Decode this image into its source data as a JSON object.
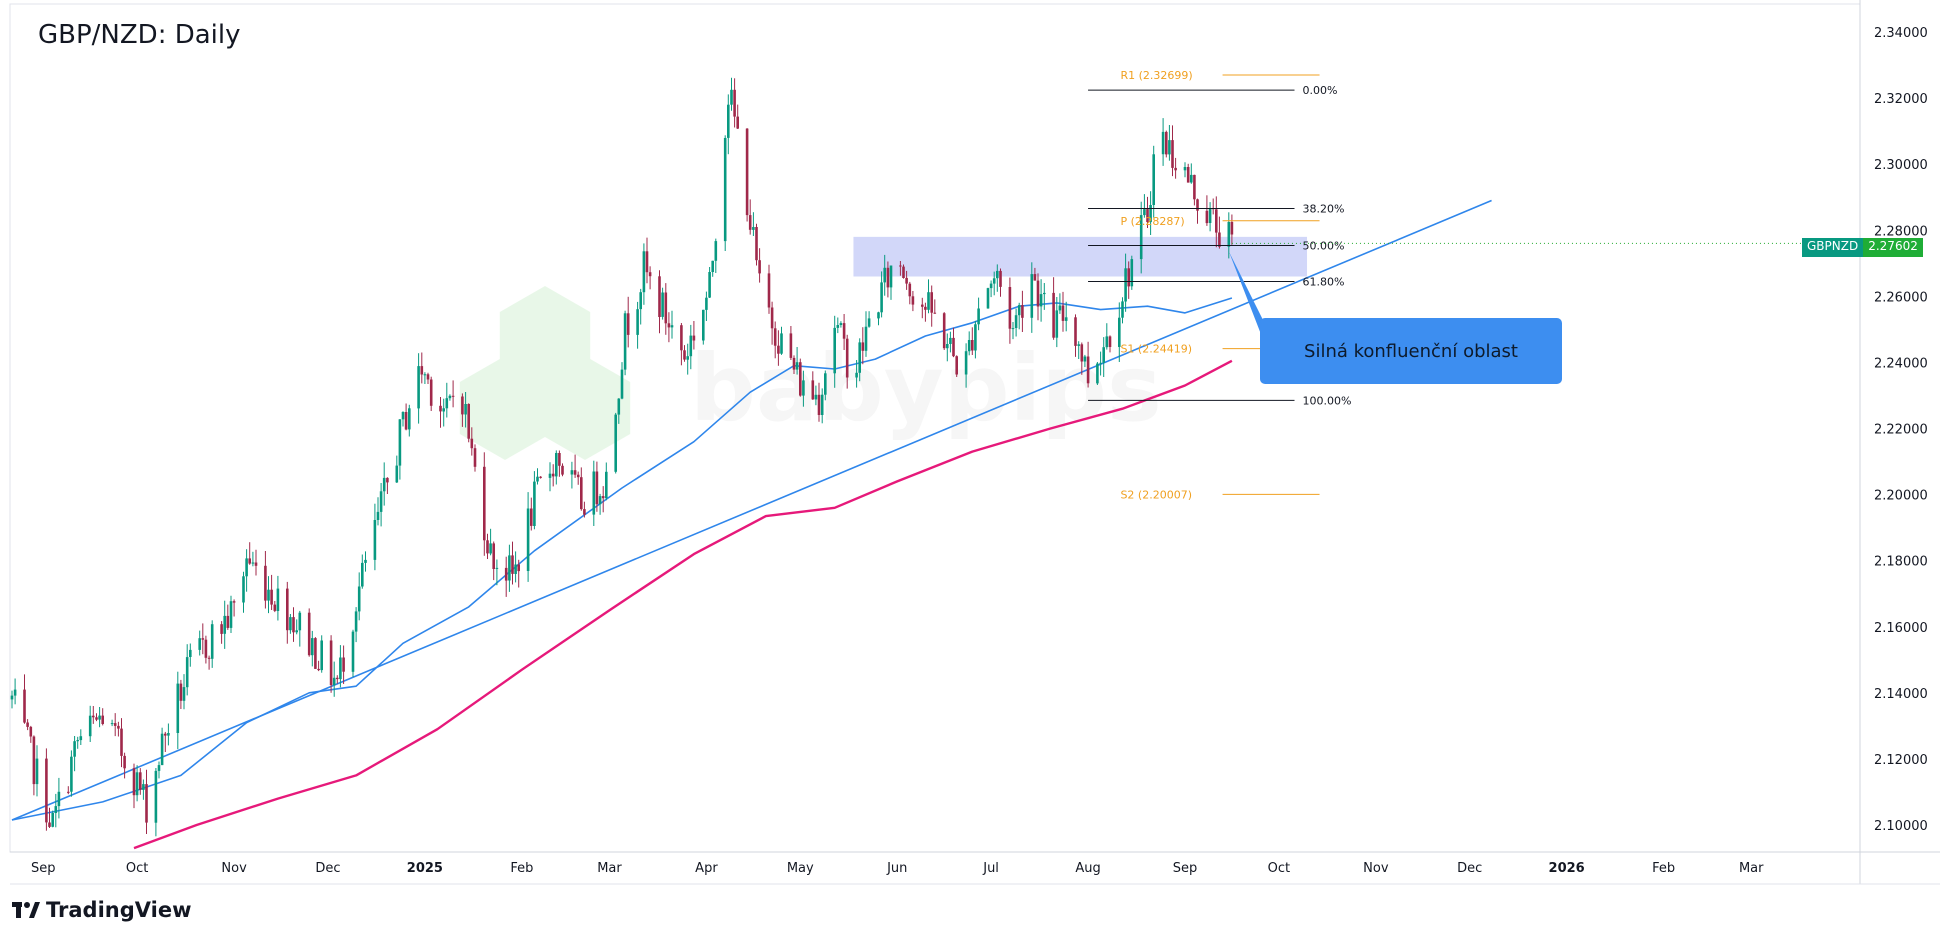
{
  "chart_data": {
    "type": "candlestick",
    "title": "GBP/NZD: Daily",
    "symbol": "GBPNZD",
    "last_price": "2.27602",
    "ylim": [
      2.092,
      2.345
    ],
    "y_ticks": [
      "2.10000",
      "2.12000",
      "2.14000",
      "2.16000",
      "2.18000",
      "2.20000",
      "2.22000",
      "2.24000",
      "2.26000",
      "2.28000",
      "2.30000",
      "2.32000",
      "2.34000"
    ],
    "x_ticks": [
      {
        "label": "Sep",
        "date": "2024-09-01",
        "bold": false
      },
      {
        "label": "Oct",
        "date": "2024-10-01",
        "bold": false
      },
      {
        "label": "Nov",
        "date": "2024-11-01",
        "bold": false
      },
      {
        "label": "Dec",
        "date": "2024-12-01",
        "bold": false
      },
      {
        "label": "2025",
        "date": "2025-01-01",
        "bold": true
      },
      {
        "label": "Feb",
        "date": "2025-02-01",
        "bold": false
      },
      {
        "label": "Mar",
        "date": "2025-03-01",
        "bold": false
      },
      {
        "label": "Apr",
        "date": "2025-04-01",
        "bold": false
      },
      {
        "label": "May",
        "date": "2025-05-01",
        "bold": false
      },
      {
        "label": "Jun",
        "date": "2025-06-01",
        "bold": false
      },
      {
        "label": "Jul",
        "date": "2025-07-01",
        "bold": false
      },
      {
        "label": "Aug",
        "date": "2025-08-01",
        "bold": false
      },
      {
        "label": "Sep",
        "date": "2025-09-01",
        "bold": false
      },
      {
        "label": "Oct",
        "date": "2025-10-01",
        "bold": false
      },
      {
        "label": "Nov",
        "date": "2025-11-01",
        "bold": false
      },
      {
        "label": "Dec",
        "date": "2025-12-01",
        "bold": false
      },
      {
        "label": "2026",
        "date": "2026-01-01",
        "bold": true
      },
      {
        "label": "Feb",
        "date": "2026-02-01",
        "bold": false
      },
      {
        "label": "Mar",
        "date": "2026-03-01",
        "bold": false
      }
    ],
    "price_path": [
      [
        "2024-08-22",
        2.138
      ],
      [
        "2024-08-29",
        2.118
      ],
      [
        "2024-09-04",
        2.1
      ],
      [
        "2024-09-12",
        2.125
      ],
      [
        "2024-09-20",
        2.133
      ],
      [
        "2024-09-30",
        2.115
      ],
      [
        "2024-10-04",
        2.106
      ],
      [
        "2024-10-10",
        2.128
      ],
      [
        "2024-10-18",
        2.148
      ],
      [
        "2024-10-25",
        2.157
      ],
      [
        "2024-11-01",
        2.165
      ],
      [
        "2024-11-05",
        2.181
      ],
      [
        "2024-11-12",
        2.172
      ],
      [
        "2024-11-22",
        2.16
      ],
      [
        "2024-11-29",
        2.15
      ],
      [
        "2024-12-04",
        2.143
      ],
      [
        "2024-12-10",
        2.168
      ],
      [
        "2024-12-18",
        2.196
      ],
      [
        "2024-12-27",
        2.228
      ],
      [
        "2024-12-31",
        2.238
      ],
      [
        "2025-01-08",
        2.224
      ],
      [
        "2025-01-12",
        2.236
      ],
      [
        "2025-01-16",
        2.212
      ],
      [
        "2025-01-22",
        2.182
      ],
      [
        "2025-01-29",
        2.175
      ],
      [
        "2025-02-05",
        2.198
      ],
      [
        "2025-02-12",
        2.212
      ],
      [
        "2025-02-20",
        2.198
      ],
      [
        "2025-02-28",
        2.205
      ],
      [
        "2025-03-06",
        2.25
      ],
      [
        "2025-03-12",
        2.268
      ],
      [
        "2025-03-18",
        2.256
      ],
      [
        "2025-03-25",
        2.242
      ],
      [
        "2025-04-02",
        2.262
      ],
      [
        "2025-04-08",
        2.322
      ],
      [
        "2025-04-12",
        2.304
      ],
      [
        "2025-04-18",
        2.262
      ],
      [
        "2025-04-25",
        2.246
      ],
      [
        "2025-05-02",
        2.232
      ],
      [
        "2025-05-07",
        2.23
      ],
      [
        "2025-05-12",
        2.252
      ],
      [
        "2025-05-18",
        2.236
      ],
      [
        "2025-05-24",
        2.255
      ],
      [
        "2025-06-01",
        2.272
      ],
      [
        "2025-06-06",
        2.262
      ],
      [
        "2025-06-14",
        2.252
      ],
      [
        "2025-06-22",
        2.236
      ],
      [
        "2025-06-28",
        2.262
      ],
      [
        "2025-07-03",
        2.266
      ],
      [
        "2025-07-08",
        2.25
      ],
      [
        "2025-07-14",
        2.268
      ],
      [
        "2025-07-20",
        2.25
      ],
      [
        "2025-07-26",
        2.256
      ],
      [
        "2025-08-01",
        2.236
      ],
      [
        "2025-08-08",
        2.25
      ],
      [
        "2025-08-14",
        2.268
      ],
      [
        "2025-08-20",
        2.285
      ],
      [
        "2025-08-23",
        2.31
      ],
      [
        "2025-08-29",
        2.302
      ],
      [
        "2025-09-05",
        2.29
      ],
      [
        "2025-09-11",
        2.281
      ],
      [
        "2025-09-16",
        2.276
      ]
    ],
    "sma_100": [
      [
        "2024-08-22",
        2.1015
      ],
      [
        "2024-09-20",
        2.107
      ],
      [
        "2024-10-15",
        2.115
      ],
      [
        "2024-11-05",
        2.131
      ],
      [
        "2024-11-25",
        2.14
      ],
      [
        "2024-12-10",
        2.142
      ],
      [
        "2024-12-25",
        2.155
      ],
      [
        "2025-01-15",
        2.166
      ],
      [
        "2025-02-05",
        2.183
      ],
      [
        "2025-03-05",
        2.202
      ],
      [
        "2025-03-28",
        2.216
      ],
      [
        "2025-04-15",
        2.231
      ],
      [
        "2025-04-29",
        2.239
      ],
      [
        "2025-05-12",
        2.238
      ],
      [
        "2025-05-25",
        2.241
      ],
      [
        "2025-06-10",
        2.248
      ],
      [
        "2025-06-25",
        2.252
      ],
      [
        "2025-07-10",
        2.257
      ],
      [
        "2025-07-22",
        2.258
      ],
      [
        "2025-08-05",
        2.256
      ],
      [
        "2025-08-20",
        2.257
      ],
      [
        "2025-09-01",
        2.255
      ],
      [
        "2025-09-16",
        2.2595
      ]
    ],
    "sma_200": [
      [
        "2024-09-30",
        2.093
      ],
      [
        "2024-10-20",
        2.1
      ],
      [
        "2024-11-15",
        2.108
      ],
      [
        "2024-12-10",
        2.115
      ],
      [
        "2025-01-05",
        2.129
      ],
      [
        "2025-02-01",
        2.147
      ],
      [
        "2025-03-01",
        2.165
      ],
      [
        "2025-03-28",
        2.182
      ],
      [
        "2025-04-20",
        2.1935
      ],
      [
        "2025-05-12",
        2.196
      ],
      [
        "2025-06-01",
        2.204
      ],
      [
        "2025-06-25",
        2.213
      ],
      [
        "2025-07-20",
        2.22
      ],
      [
        "2025-08-12",
        2.226
      ],
      [
        "2025-09-01",
        2.233
      ],
      [
        "2025-09-16",
        2.2405
      ]
    ],
    "trendline": {
      "from": [
        "2024-08-22",
        2.1015
      ],
      "to": [
        "2025-12-08",
        2.289
      ]
    },
    "supply_zone": {
      "from": "2025-05-18",
      "to": "2025-10-10",
      "top": 2.278,
      "bottom": 2.266
    },
    "fibonacci": {
      "from": "2025-08-01",
      "to": "2025-10-06",
      "levels": [
        {
          "label": "0.00%",
          "price": 2.3224
        },
        {
          "label": "38.20%",
          "price": 2.2866
        },
        {
          "label": "50.00%",
          "price": 2.2754
        },
        {
          "label": "61.80%",
          "price": 2.2645
        },
        {
          "label": "100.00%",
          "price": 2.2285
        }
      ]
    },
    "pivots": {
      "from": "2025-08-12",
      "to": "2025-10-14",
      "levels": [
        {
          "label": "R1 (2.32699)",
          "price": 2.32699
        },
        {
          "label": "P (2.28287)",
          "price": 2.28287
        },
        {
          "label": "S1 (2.24419)",
          "price": 2.24419
        },
        {
          "label": "S2 (2.20007)",
          "price": 2.20007
        }
      ]
    },
    "colors": {
      "up": "#089981",
      "down": "#a0284a",
      "sma100": "#2f86eb",
      "sma200": "#e6197a",
      "trend": "#2f86eb",
      "pivot": "#f0a020",
      "fib": "#131722",
      "zone": "#c7cdf7"
    }
  },
  "callout": {
    "text": "Silná konfluenční oblast"
  },
  "watermark": "babypips",
  "footer": {
    "logo_text": "TradingView"
  }
}
